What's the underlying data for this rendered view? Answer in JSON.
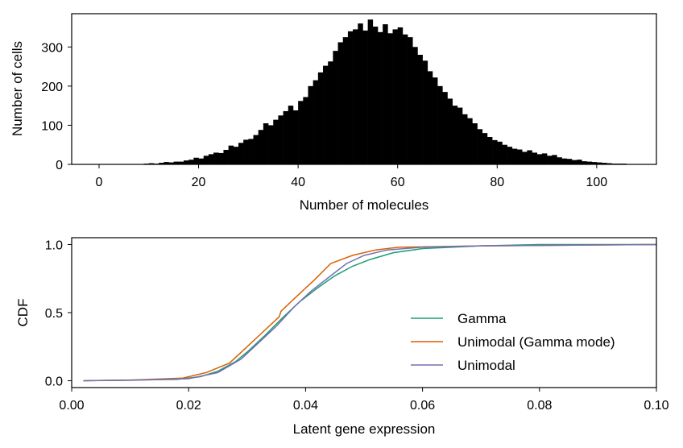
{
  "chart_data": [
    {
      "type": "bar",
      "title": "",
      "xlabel": "Number of molecules",
      "ylabel": "Number of cells",
      "xlim": [
        -5.5,
        112
      ],
      "ylim": [
        0,
        385
      ],
      "xticks": [
        0,
        20,
        40,
        60,
        80,
        100
      ],
      "yticks": [
        0,
        100,
        200,
        300
      ],
      "bin_width": 1,
      "bins_start": 9,
      "values": [
        2,
        3,
        2,
        4,
        6,
        5,
        7,
        7,
        10,
        12,
        17,
        15,
        22,
        26,
        30,
        29,
        37,
        48,
        45,
        55,
        63,
        65,
        75,
        88,
        105,
        100,
        114,
        125,
        136,
        150,
        138,
        162,
        172,
        200,
        215,
        235,
        252,
        263,
        290,
        312,
        325,
        340,
        345,
        360,
        342,
        370,
        352,
        338,
        358,
        335,
        345,
        350,
        332,
        325,
        300,
        280,
        265,
        238,
        222,
        200,
        185,
        168,
        150,
        145,
        128,
        118,
        105,
        90,
        80,
        70,
        62,
        58,
        50,
        45,
        40,
        38,
        32,
        36,
        30,
        26,
        28,
        22,
        24,
        18,
        15,
        14,
        11,
        12,
        8,
        7,
        6,
        5,
        4,
        3,
        2,
        2,
        2,
        1,
        1,
        1
      ]
    },
    {
      "type": "line",
      "title": "",
      "xlabel": "Latent gene expression",
      "ylabel": "CDF",
      "xlim": [
        0.0,
        0.1
      ],
      "ylim": [
        -0.05,
        1.05
      ],
      "xticks": [
        "0.00",
        "0.02",
        "0.04",
        "0.06",
        "0.08",
        "0.10"
      ],
      "yticks": [
        "0.0",
        "0.5",
        "1.0"
      ],
      "legend_position": "lower-right",
      "series": [
        {
          "name": "Gamma",
          "color": "#1b9e77",
          "points": [
            [
              0.002,
              0.0
            ],
            [
              0.018,
              0.01
            ],
            [
              0.022,
              0.03
            ],
            [
              0.025,
              0.07
            ],
            [
              0.028,
              0.14
            ],
            [
              0.03,
              0.21
            ],
            [
              0.033,
              0.33
            ],
            [
              0.036,
              0.46
            ],
            [
              0.039,
              0.58
            ],
            [
              0.042,
              0.68
            ],
            [
              0.045,
              0.77
            ],
            [
              0.048,
              0.84
            ],
            [
              0.051,
              0.89
            ],
            [
              0.055,
              0.94
            ],
            [
              0.06,
              0.97
            ],
            [
              0.07,
              0.99
            ],
            [
              0.08,
              1.0
            ],
            [
              0.1,
              1.0
            ]
          ]
        },
        {
          "name": "Unimodal (Gamma mode)",
          "color": "#d95f02",
          "points": [
            [
              0.002,
              0.0
            ],
            [
              0.01,
              0.005
            ],
            [
              0.019,
              0.02
            ],
            [
              0.023,
              0.06
            ],
            [
              0.027,
              0.13
            ],
            [
              0.03,
              0.25
            ],
            [
              0.033,
              0.37
            ],
            [
              0.0355,
              0.47
            ],
            [
              0.0358,
              0.51
            ],
            [
              0.0385,
              0.62
            ],
            [
              0.0415,
              0.74
            ],
            [
              0.0443,
              0.86
            ],
            [
              0.048,
              0.92
            ],
            [
              0.052,
              0.96
            ],
            [
              0.056,
              0.98
            ],
            [
              0.07,
              0.99
            ],
            [
              0.1,
              1.0
            ]
          ]
        },
        {
          "name": "Unimodal",
          "color": "#7570b3",
          "points": [
            [
              0.002,
              0.0
            ],
            [
              0.01,
              0.003
            ],
            [
              0.02,
              0.015
            ],
            [
              0.025,
              0.06
            ],
            [
              0.029,
              0.16
            ],
            [
              0.032,
              0.28
            ],
            [
              0.035,
              0.4
            ],
            [
              0.038,
              0.54
            ],
            [
              0.041,
              0.66
            ],
            [
              0.044,
              0.76
            ],
            [
              0.047,
              0.86
            ],
            [
              0.05,
              0.92
            ],
            [
              0.054,
              0.96
            ],
            [
              0.06,
              0.98
            ],
            [
              0.07,
              0.99
            ],
            [
              0.1,
              1.0
            ]
          ]
        }
      ]
    }
  ]
}
